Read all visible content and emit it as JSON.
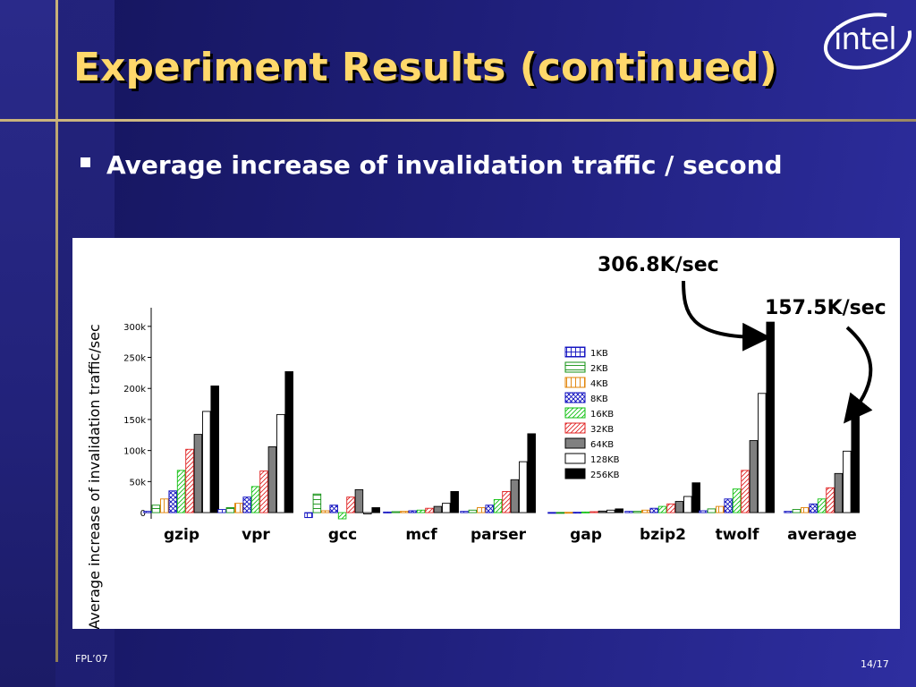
{
  "slide": {
    "title": "Experiment Results (continued)",
    "bullet": "Average increase of invalidation traffic / second",
    "logo_text": "intel",
    "footer_left": "FPL’07",
    "footer_right": "14/17"
  },
  "annotations": [
    {
      "text": "306.8K/sec"
    },
    {
      "text": "157.5K/sec"
    }
  ],
  "colors": {
    "title": "#ffd86b",
    "background": "#1e1e78",
    "accent_line": "#c9b27a"
  },
  "chart_data": {
    "type": "bar",
    "ylabel": "Average increase of invalidation traffic/sec",
    "xlabel": "",
    "ylim": [
      -10000,
      330000
    ],
    "yticks": [
      0,
      50000,
      100000,
      150000,
      200000,
      250000,
      300000
    ],
    "ytick_labels": [
      "0",
      "50k",
      "100k",
      "150k",
      "200k",
      "250k",
      "300k"
    ],
    "legend_position": "center-right",
    "categories": [
      "gzip",
      "vpr",
      "gcc",
      "mcf",
      "parser",
      "gap",
      "bzip2",
      "twolf",
      "average"
    ],
    "series": [
      {
        "name": "1KB",
        "color": "#1010c0",
        "pattern": "grid",
        "values": [
          2000,
          5000,
          -8000,
          1000,
          2000,
          300,
          2000,
          3000,
          2000
        ]
      },
      {
        "name": "2KB",
        "color": "#109010",
        "pattern": "hline",
        "values": [
          12000,
          8000,
          30000,
          1500,
          4000,
          300,
          2000,
          6000,
          5000
        ]
      },
      {
        "name": "4KB",
        "color": "#e08000",
        "pattern": "vline",
        "values": [
          22000,
          15000,
          3000,
          2000,
          8000,
          500,
          4000,
          10000,
          8000
        ]
      },
      {
        "name": "8KB",
        "color": "#1010c0",
        "pattern": "cross",
        "values": [
          35000,
          25000,
          12000,
          3000,
          12000,
          600,
          7000,
          22000,
          14000
        ]
      },
      {
        "name": "16KB",
        "color": "#10c010",
        "pattern": "diag",
        "values": [
          68000,
          42000,
          -10000,
          4000,
          21000,
          1000,
          10000,
          38000,
          22000
        ]
      },
      {
        "name": "32KB",
        "color": "#e02020",
        "pattern": "diag",
        "values": [
          102000,
          67000,
          25000,
          7000,
          34000,
          1500,
          14000,
          68000,
          40000
        ]
      },
      {
        "name": "64KB",
        "color": "#808080",
        "pattern": "solid",
        "values": [
          126000,
          106000,
          37000,
          10000,
          53000,
          2500,
          18000,
          116000,
          63000
        ]
      },
      {
        "name": "128KB",
        "color": "#ffffff",
        "pattern": "outline",
        "values": [
          163000,
          158000,
          -2000,
          15000,
          82000,
          4000,
          26000,
          192000,
          99000
        ]
      },
      {
        "name": "256KB",
        "color": "#000000",
        "pattern": "solid",
        "values": [
          204000,
          227000,
          8000,
          34000,
          127000,
          6000,
          48000,
          306800,
          157500
        ]
      }
    ]
  }
}
